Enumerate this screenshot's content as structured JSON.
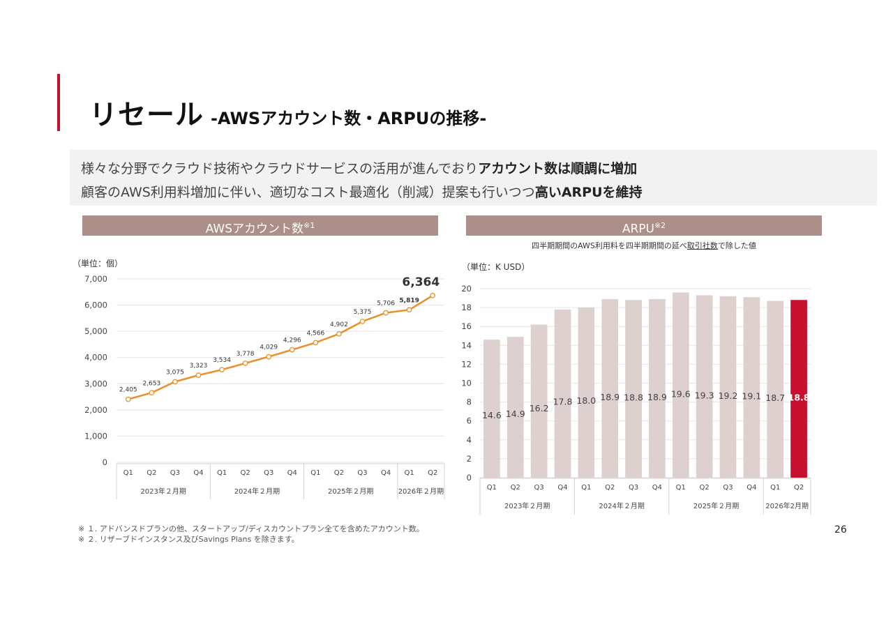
{
  "header": {
    "title_main": "リセール",
    "title_sub": "-AWSアカウント数・ARPUの推移-"
  },
  "summary": {
    "line1_normal": "様々な分野でクラウド技術やクラウドサービスの活用が進んでおり",
    "line1_bold": "アカウント数は順調に増加",
    "line2_normal": "顧客のAWS利用料増加に伴い、適切なコスト最適化（削減）提案も行いつつ",
    "line2_bold": "高いARPUを維持"
  },
  "left_panel": {
    "header": "AWSアカウント数",
    "header_sup": "※1",
    "unit": "（単位：個）"
  },
  "right_panel": {
    "header": "ARPU",
    "header_sup": "※2",
    "note_before": "四半期期間のAWS利用料を四半期期間の延べ",
    "note_underlined": "取引社数",
    "note_after": "で除した値",
    "unit": "（単位：K USD）"
  },
  "colors": {
    "accent": "#c8102e",
    "panel_header": "#ad8f89",
    "line": "#e8912d",
    "bar": "#ddd0ce",
    "bar_highlight": "#c8102e"
  },
  "chart_data": [
    {
      "type": "line",
      "title": "AWSアカウント数",
      "ylabel": "（単位：個）",
      "categories": [
        "Q1",
        "Q2",
        "Q3",
        "Q4",
        "Q1",
        "Q2",
        "Q3",
        "Q4",
        "Q1",
        "Q2",
        "Q3",
        "Q4",
        "Q1",
        "Q2"
      ],
      "groups": [
        {
          "label": "2023年２月期",
          "count": 4
        },
        {
          "label": "2024年２月期",
          "count": 4
        },
        {
          "label": "2025年２月期",
          "count": 4
        },
        {
          "label": "2026年２月期",
          "count": 2
        }
      ],
      "values": [
        2405,
        2653,
        3075,
        3323,
        3534,
        3778,
        4029,
        4296,
        4566,
        4902,
        5375,
        5706,
        5819,
        6364
      ],
      "data_labels": [
        "2,405",
        "2,653",
        "3,075",
        "3,323",
        "3,534",
        "3,778",
        "4,029",
        "4,296",
        "4,566",
        "4,902",
        "5,375",
        "5,706",
        "5,819",
        "6,364"
      ],
      "yticks": [
        "0",
        "1,000",
        "2,000",
        "3,000",
        "4,000",
        "5,000",
        "6,000",
        "7,000"
      ],
      "ylim": [
        0,
        7000
      ]
    },
    {
      "type": "bar",
      "title": "ARPU",
      "ylabel": "（単位：K USD）",
      "categories": [
        "Q1",
        "Q2",
        "Q3",
        "Q4",
        "Q1",
        "Q2",
        "Q3",
        "Q4",
        "Q1",
        "Q2",
        "Q3",
        "Q4",
        "Q1",
        "Q2"
      ],
      "groups": [
        {
          "label": "2023年２月期",
          "count": 4
        },
        {
          "label": "2024年２月期",
          "count": 4
        },
        {
          "label": "2025年２月期",
          "count": 4
        },
        {
          "label": "2026年2月期",
          "count": 2
        }
      ],
      "values": [
        14.6,
        14.9,
        16.2,
        17.8,
        18.0,
        18.9,
        18.8,
        18.9,
        19.6,
        19.3,
        19.2,
        19.1,
        18.7,
        18.8
      ],
      "data_labels": [
        "14.6",
        "14.9",
        "16.2",
        "17.8",
        "18.0",
        "18.9",
        "18.8",
        "18.9",
        "19.6",
        "19.3",
        "19.2",
        "19.1",
        "18.7",
        "18.8"
      ],
      "highlight_index": 13,
      "yticks": [
        "0",
        "2",
        "4",
        "6",
        "8",
        "10",
        "12",
        "14",
        "16",
        "18",
        "20"
      ],
      "ylim": [
        0,
        20
      ]
    }
  ],
  "footnotes": [
    "※ １. アドバンスドプランの他、スタートアップ/ディスカウントプラン全てを含めたアカウント数。",
    "※ ２. リザーブドインスタンス及びSavings Plans を除きます。"
  ],
  "page_number": "26"
}
